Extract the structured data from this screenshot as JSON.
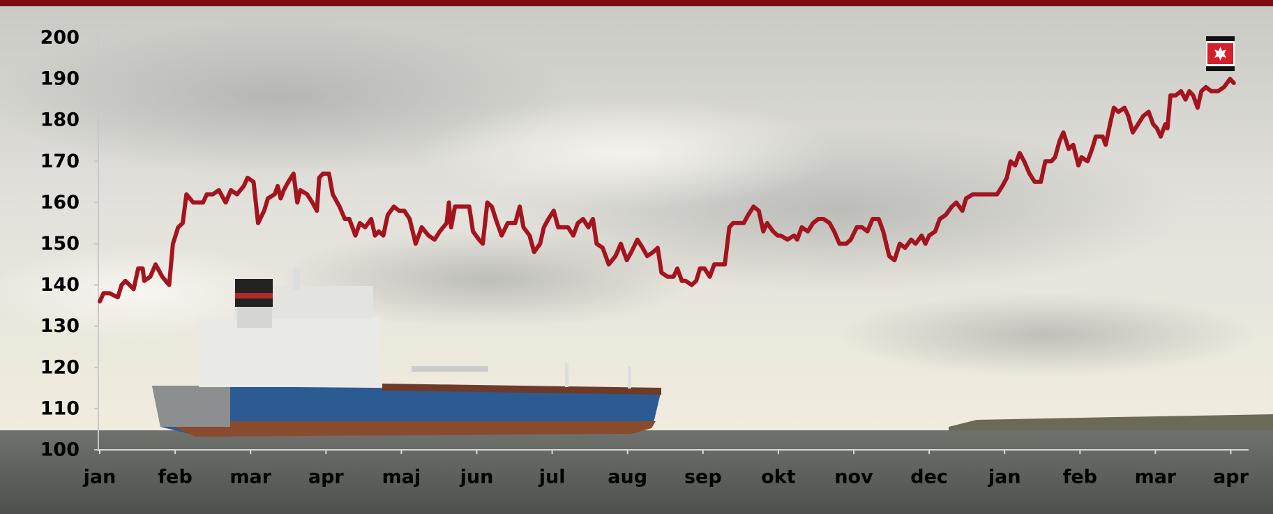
{
  "chart_data": {
    "type": "line",
    "color": "#a3141f",
    "x": [
      0,
      0.05,
      0.13,
      0.24,
      0.29,
      0.34,
      0.45,
      0.51,
      0.57,
      0.59,
      0.67,
      0.74,
      0.83,
      0.92,
      0.97,
      1.04,
      1.1,
      1.15,
      1.24,
      1.37,
      1.42,
      1.5,
      1.58,
      1.67,
      1.74,
      1.82,
      1.91,
      1.96,
      2.04,
      2.1,
      2.18,
      2.23,
      2.32,
      2.36,
      2.4,
      2.44,
      2.5,
      2.57,
      2.62,
      2.66,
      2.75,
      2.82,
      2.88,
      2.91,
      2.96,
      3.04,
      3.09,
      3.18,
      3.25,
      3.31,
      3.39,
      3.45,
      3.52,
      3.6,
      3.65,
      3.7,
      3.76,
      3.82,
      3.9,
      3.97,
      4.04,
      4.11,
      4.19,
      4.27,
      4.36,
      4.44,
      4.51,
      4.6,
      4.63,
      4.66,
      4.71,
      4.79,
      4.9,
      4.95,
      5.03,
      5.08,
      5.14,
      5.2,
      5.27,
      5.33,
      5.41,
      5.51,
      5.57,
      5.62,
      5.7,
      5.76,
      5.84,
      5.89,
      5.95,
      6.02,
      6.08,
      6.16,
      6.21,
      6.28,
      6.34,
      6.41,
      6.48,
      6.54,
      6.59,
      6.67,
      6.75,
      6.84,
      6.91,
      6.99,
      7.05,
      7.13,
      7.2,
      7.26,
      7.34,
      7.4,
      7.45,
      7.53,
      7.61,
      7.66,
      7.72,
      7.77,
      7.85,
      7.91,
      7.96,
      8.02,
      8.09,
      8.15,
      8.24,
      8.29,
      8.35,
      8.4,
      8.47,
      8.54,
      8.6,
      8.67,
      8.74,
      8.8,
      8.85,
      8.93,
      8.99,
      9.03,
      9.12,
      9.21,
      9.25,
      9.31,
      9.39,
      9.46,
      9.53,
      9.6,
      9.68,
      9.74,
      9.81,
      9.9,
      9.96,
      10.04,
      10.11,
      10.18,
      10.25,
      10.33,
      10.39,
      10.47,
      10.54,
      10.61,
      10.68,
      10.76,
      10.82,
      10.9,
      10.95,
      11,
      11.08,
      11.14,
      11.22,
      11.3,
      11.36,
      11.44,
      11.49,
      11.58,
      11.7,
      11.81,
      11.9,
      11.97,
      12.03,
      12.08,
      12.14,
      12.2,
      12.26,
      12.33,
      12.4,
      12.48,
      12.54,
      12.62,
      12.67,
      12.73,
      12.78,
      12.85,
      12.91,
      12.98,
      13.02,
      13.1,
      13.16,
      13.21,
      13.3,
      13.34,
      13.41,
      13.45,
      13.51,
      13.59,
      13.64,
      13.7,
      13.77,
      13.84,
      13.91,
      13.97,
      14.02,
      14.07,
      14.13,
      14.16,
      14.2,
      14.27,
      14.34,
      14.4,
      14.45,
      14.5,
      14.56,
      14.61,
      14.67,
      14.74,
      14.83,
      14.91,
      14.99,
      15.04
    ],
    "values": [
      136,
      138,
      138,
      137,
      140,
      141,
      139,
      144,
      144,
      141,
      142,
      145,
      142,
      140,
      150,
      154,
      155,
      162,
      160,
      160,
      162,
      162,
      163,
      160,
      163,
      162,
      164,
      166,
      165,
      155,
      158,
      161,
      162,
      164,
      161,
      163,
      165,
      167,
      160,
      163,
      162,
      160,
      158,
      166,
      167,
      167,
      162,
      159,
      156,
      156,
      152,
      155,
      154,
      156,
      152,
      153,
      152,
      157,
      159,
      158,
      158,
      156,
      150,
      154,
      152,
      151,
      153,
      155,
      160,
      154,
      159,
      159,
      159,
      153,
      151,
      150,
      160,
      159,
      155,
      152,
      155,
      155,
      159,
      154,
      152,
      148,
      150,
      154,
      156,
      158,
      154,
      154,
      154,
      152,
      155,
      156,
      154,
      156,
      150,
      149,
      145,
      147,
      150,
      146,
      148,
      151,
      149,
      147,
      148,
      149,
      143,
      142,
      142,
      144,
      141,
      141,
      140,
      141,
      144,
      144,
      142,
      145,
      145,
      145,
      154,
      155,
      155,
      155,
      157,
      159,
      158,
      153,
      155,
      153,
      152,
      152,
      151,
      152,
      151,
      154,
      153,
      155,
      156,
      156,
      155,
      153,
      150,
      150,
      151,
      154,
      154,
      153,
      156,
      156,
      153,
      147,
      146,
      150,
      149,
      151,
      150,
      152,
      150,
      152,
      153,
      156,
      157,
      159,
      160,
      158,
      161,
      162,
      162,
      162,
      162,
      164,
      166,
      170,
      169,
      172,
      170,
      167,
      165,
      165,
      170,
      170,
      171,
      175,
      177,
      173,
      174,
      169,
      171,
      170,
      173,
      176,
      176,
      174,
      180,
      183,
      182,
      183,
      181,
      177,
      179,
      181,
      182,
      179,
      178,
      176,
      179,
      178,
      186,
      186,
      187,
      185,
      187,
      186,
      183,
      187,
      188,
      187,
      187,
      188,
      190,
      189
    ],
    "xlim": [
      0,
      15.1
    ],
    "xticks": [
      {
        "value": 0,
        "label": "jan"
      },
      {
        "value": 1,
        "label": "feb"
      },
      {
        "value": 2,
        "label": "mar"
      },
      {
        "value": 3,
        "label": "apr"
      },
      {
        "value": 4,
        "label": "maj"
      },
      {
        "value": 5,
        "label": "jun"
      },
      {
        "value": 6,
        "label": "jul"
      },
      {
        "value": 7,
        "label": "aug"
      },
      {
        "value": 8,
        "label": "sep"
      },
      {
        "value": 9,
        "label": "okt"
      },
      {
        "value": 10,
        "label": "nov"
      },
      {
        "value": 11,
        "label": "dec"
      },
      {
        "value": 12,
        "label": "jan"
      },
      {
        "value": 13,
        "label": "feb"
      },
      {
        "value": 14,
        "label": "mar"
      },
      {
        "value": 15,
        "label": "apr"
      }
    ],
    "ylim": [
      100,
      200
    ],
    "yticks": [
      100,
      110,
      120,
      130,
      140,
      150,
      160,
      170,
      180,
      190,
      200
    ]
  }
}
